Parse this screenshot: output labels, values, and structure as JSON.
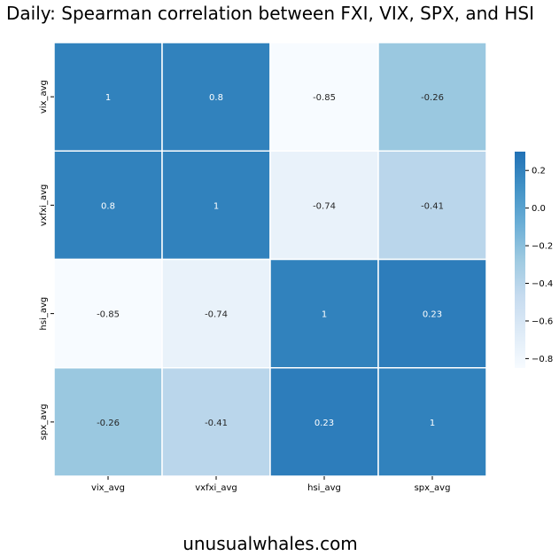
{
  "chart_data": {
    "type": "heatmap",
    "title": "Daily: Spearman correlation between FXI, VIX, SPX, and HSI",
    "x_labels": [
      "vix_avg",
      "vxfxi_avg",
      "hsi_avg",
      "spx_avg"
    ],
    "y_labels": [
      "vix_avg",
      "vxfxi_avg",
      "hsi_avg",
      "spx_avg"
    ],
    "values": [
      [
        1,
        0.8,
        -0.85,
        -0.26
      ],
      [
        0.8,
        1,
        -0.74,
        -0.41
      ],
      [
        -0.85,
        -0.74,
        1,
        0.23
      ],
      [
        -0.26,
        -0.41,
        0.23,
        1
      ]
    ],
    "cell_labels": [
      [
        "1",
        "0.8",
        "-0.85",
        "-0.26"
      ],
      [
        "0.8",
        "1",
        "-0.74",
        "-0.41"
      ],
      [
        "-0.85",
        "-0.74",
        "1",
        "0.23"
      ],
      [
        "-0.26",
        "-0.41",
        "0.23",
        "1"
      ]
    ],
    "colorbar": {
      "vmin": -0.85,
      "vmax": 0.3,
      "ticks": [
        0.2,
        0.0,
        -0.2,
        -0.4,
        -0.6,
        -0.8
      ],
      "tick_labels": [
        "0.2",
        "0.0",
        "−0.2",
        "−0.4",
        "−0.6",
        "−0.8"
      ]
    },
    "colormap": "Blues",
    "cmap_stops": [
      "#f7fbff",
      "#deebf7",
      "#c6dbef",
      "#9ecae1",
      "#6baed6",
      "#4292c6",
      "#2171b5"
    ],
    "color_max": "#3182bd",
    "label_color_light": "#ffffff",
    "label_color_dark": "#262626",
    "grid_line_color": "#ffffff"
  },
  "footer": {
    "text": "unusualwhales.com"
  }
}
